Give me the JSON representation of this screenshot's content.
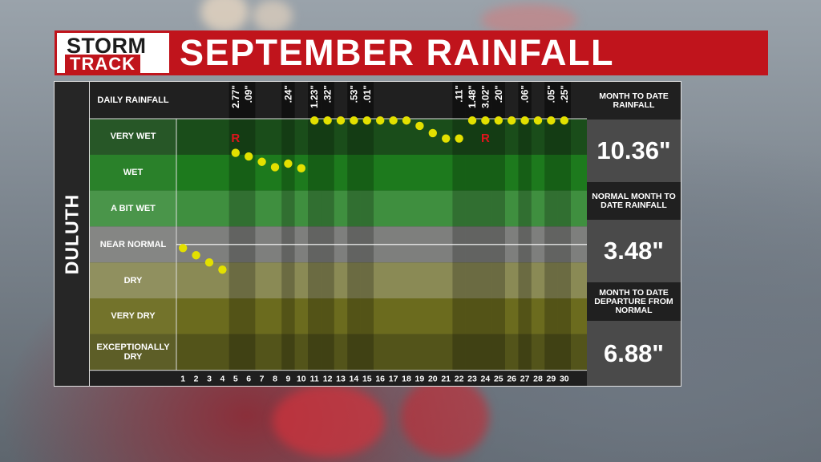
{
  "logo": {
    "line1": "STORM",
    "line2": "TRACK"
  },
  "title": "SEPTEMBER RAINFALL",
  "station": "DULUTH",
  "sidebar": [
    {
      "heading": "MONTH TO DATE RAINFALL",
      "value": "10.36\""
    },
    {
      "heading": "NORMAL MONTH TO DATE RAINFALL",
      "value": "3.48\""
    },
    {
      "heading": "MONTH TO DATE DEPARTURE FROM NORMAL",
      "value": "6.88\""
    }
  ],
  "chart_data": {
    "type": "scatter",
    "daily_rainfall_header": "DAILY RAINFALL",
    "categories": [
      "VERY WET",
      "WET",
      "A BIT WET",
      "NEAR NORMAL",
      "DRY",
      "VERY DRY",
      "EXCEPTIONALLY DRY"
    ],
    "category_colors": [
      "#1a4d1a",
      "#1d7a1d",
      "#3f8f3f",
      "#7e7f7d",
      "#8a8a55",
      "#6b6b1e",
      "#53541a"
    ],
    "days": [
      1,
      2,
      3,
      4,
      5,
      6,
      7,
      8,
      9,
      10,
      11,
      12,
      13,
      14,
      15,
      16,
      17,
      18,
      19,
      20,
      21,
      22,
      23,
      24,
      25,
      26,
      27,
      28,
      29,
      30
    ],
    "rain_days": [
      {
        "day": 5,
        "amount": "2.77\""
      },
      {
        "day": 6,
        "amount": ".09\""
      },
      {
        "day": 9,
        "amount": ".24\""
      },
      {
        "day": 11,
        "amount": "1.23\""
      },
      {
        "day": 12,
        "amount": ".32\""
      },
      {
        "day": 14,
        "amount": ".53\""
      },
      {
        "day": 15,
        "amount": ".01\""
      },
      {
        "day": 22,
        "amount": ".11\""
      },
      {
        "day": 23,
        "amount": "1.48\""
      },
      {
        "day": 24,
        "amount": "3.02\""
      },
      {
        "day": 25,
        "amount": ".20\""
      },
      {
        "day": 27,
        "amount": ".06\""
      },
      {
        "day": 29,
        "amount": ".05\""
      },
      {
        "day": 30,
        "amount": ".25\""
      }
    ],
    "record_marker": "R",
    "record_days": [
      5,
      24
    ],
    "point_color": "#e3e000",
    "points_band_position": [
      3.6,
      3.8,
      4.0,
      4.2,
      0.95,
      1.05,
      1.2,
      1.35,
      1.25,
      1.38,
      0.05,
      0.05,
      0.05,
      0.05,
      0.05,
      0.05,
      0.05,
      0.05,
      0.2,
      0.4,
      0.55,
      0.55,
      0.05,
      0.05,
      0.05,
      0.05,
      0.05,
      0.05,
      0.05,
      0.05
    ]
  }
}
